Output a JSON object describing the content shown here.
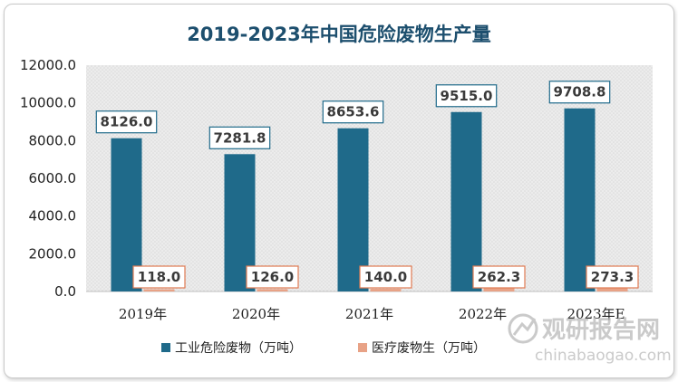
{
  "chart_data": {
    "type": "bar",
    "title": "2019-2023年中国危险废物生产量",
    "categories": [
      "2019年",
      "2020年",
      "2021年",
      "2022年",
      "2023年E"
    ],
    "series": [
      {
        "name": "工业危险废物（万吨）",
        "color": "#1f6a8a",
        "values": [
          8126.0,
          7281.8,
          8653.6,
          9515.0,
          9708.8
        ]
      },
      {
        "name": "医疗废物生（万吨）",
        "color": "#e8a286",
        "values": [
          118.0,
          126.0,
          140.0,
          262.3,
          273.3
        ]
      }
    ],
    "ylim": [
      0,
      12000
    ],
    "yticks": [
      "0.0",
      "2000.0",
      "4000.0",
      "6000.0",
      "8000.0",
      "10000.0",
      "12000.0"
    ],
    "data_labels": [
      [
        "8126.0",
        "7281.8",
        "8653.6",
        "9515.0",
        "9708.8"
      ],
      [
        "118.0",
        "126.0",
        "140.0",
        "262.3",
        "273.3"
      ]
    ],
    "legend": "bottom",
    "grid": false
  },
  "watermark": {
    "brand": "观研报告网",
    "url": "chinabaogao.com"
  }
}
